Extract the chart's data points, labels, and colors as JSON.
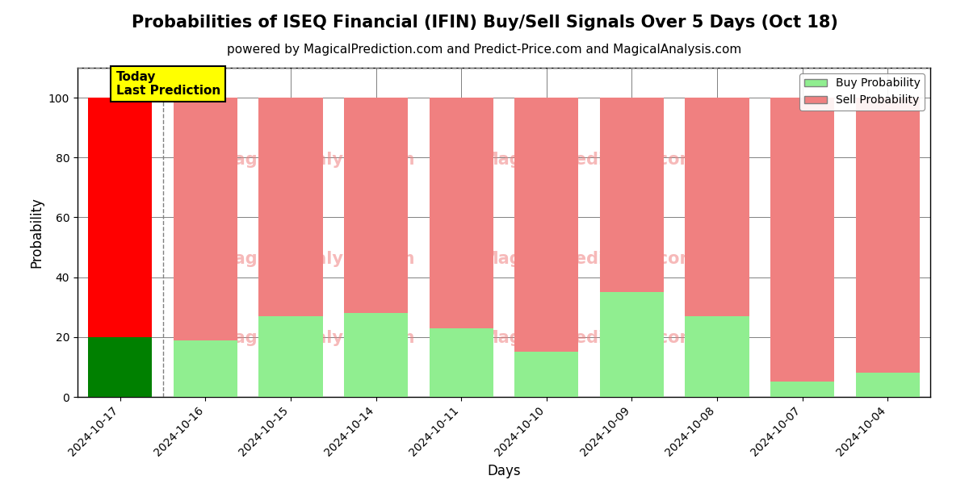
{
  "title": "Probabilities of ISEQ Financial (IFIN) Buy/Sell Signals Over 5 Days (Oct 18)",
  "subtitle": "powered by MagicalPrediction.com and Predict-Price.com and MagicalAnalysis.com",
  "xlabel": "Days",
  "ylabel": "Probability",
  "categories": [
    "2024-10-17",
    "2024-10-16",
    "2024-10-15",
    "2024-10-14",
    "2024-10-11",
    "2024-10-10",
    "2024-10-09",
    "2024-10-08",
    "2024-10-07",
    "2024-10-04"
  ],
  "buy_values": [
    20,
    19,
    27,
    28,
    23,
    15,
    35,
    27,
    5,
    8
  ],
  "sell_values": [
    80,
    81,
    73,
    72,
    77,
    85,
    65,
    73,
    95,
    92
  ],
  "today_bar_buy_color": "#008000",
  "today_bar_sell_color": "#ff0000",
  "other_bar_buy_color": "#90EE90",
  "other_bar_sell_color": "#F08080",
  "ylim": [
    0,
    110
  ],
  "yticks": [
    0,
    20,
    40,
    60,
    80,
    100
  ],
  "legend_buy_label": "Buy Probability",
  "legend_sell_label": "Sell Probability",
  "today_annotation": "Today\nLast Prediction",
  "title_fontsize": 15,
  "subtitle_fontsize": 11,
  "bg_color": "#ffffff"
}
